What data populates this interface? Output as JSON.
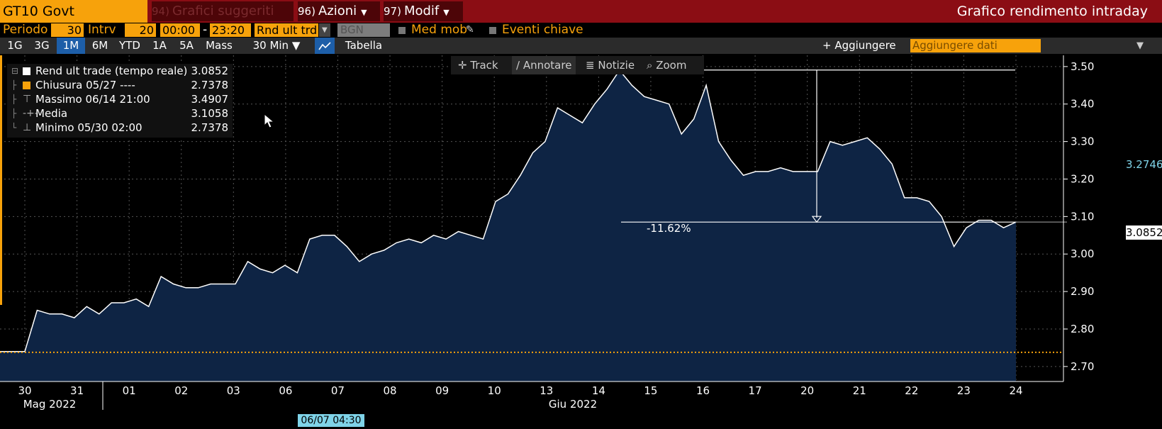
{
  "header": {
    "ticker": "GT10 Govt",
    "menus": [
      {
        "num": "94)",
        "label": "Grafici suggeriti"
      },
      {
        "num": "96)",
        "label": "Azioni"
      },
      {
        "num": "97)",
        "label": "Modif"
      }
    ],
    "title": "Grafico rendimento intraday"
  },
  "settings": {
    "periodo_label": "Periodo",
    "periodo_value": "30",
    "intrv_label": "Intrv",
    "intrv_value": "20",
    "time_start": "00:00",
    "time_sep": "-",
    "time_end": "23:20",
    "field": "Rnd ult trd",
    "source": "BGN",
    "med_mob": "Med mob",
    "eventi": "Eventi chiave"
  },
  "ranges": {
    "buttons": [
      "1G",
      "3G",
      "1M",
      "6M",
      "YTD",
      "1A",
      "5A",
      "Mass"
    ],
    "active": "1M",
    "interval": "30 Min",
    "tabella": "Tabella",
    "add_button": "+ Aggiungere",
    "add_placeholder": "Aggiungere dati"
  },
  "tools": [
    "Track",
    "Annotare",
    "Notizie",
    "Zoom"
  ],
  "legend": [
    {
      "name": "Rend ult trade (tempo reale)",
      "value": "3.0852",
      "color": "#ffffff"
    },
    {
      "name": "Chiusura 05/27 ----",
      "value": "2.7378",
      "color": "#f7a20b"
    },
    {
      "name": "Massimo 06/14 21:00",
      "value": "3.4907",
      "color": ""
    },
    {
      "name": "Media",
      "value": "3.1058",
      "color": ""
    },
    {
      "name": "Minimo 05/30 02:00",
      "value": "2.7378",
      "color": ""
    }
  ],
  "chart_data": {
    "type": "area",
    "title": "Grafico rendimento intraday",
    "ylim": [
      2.66,
      3.53
    ],
    "yticks": [
      "3.50",
      "3.40",
      "3.30",
      "3.20",
      "3.10",
      "3.00",
      "2.90",
      "2.80",
      "2.70"
    ],
    "x_labels": [
      "30",
      "31",
      "01",
      "02",
      "03",
      "06",
      "07",
      "08",
      "09",
      "10",
      "13",
      "14",
      "15",
      "16",
      "17",
      "20",
      "21",
      "22",
      "23",
      "24"
    ],
    "month_labels": [
      "Mag 2022",
      "Giu 2022"
    ],
    "cursor_date": "06/07 04:30",
    "last_value": "3.0852",
    "current_value": "3.2746",
    "previous_close": 2.7378,
    "annotation_pct": "-11.62%",
    "series": [
      {
        "values": [
          2.74,
          2.74,
          2.74,
          2.85,
          2.84,
          2.84,
          2.83,
          2.86,
          2.84,
          2.87,
          2.87,
          2.88,
          2.86,
          2.94,
          2.92,
          2.91,
          2.91,
          2.92,
          2.92,
          2.92,
          2.98,
          2.96,
          2.95,
          2.97,
          2.95,
          3.04,
          3.05,
          3.05,
          3.02,
          2.98,
          3.0,
          3.01,
          3.03,
          3.04,
          3.03,
          3.05,
          3.04,
          3.06,
          3.05,
          3.04,
          3.14,
          3.16,
          3.21,
          3.27,
          3.3,
          3.39,
          3.37,
          3.35,
          3.4,
          3.44,
          3.49,
          3.45,
          3.42,
          3.41,
          3.4,
          3.32,
          3.36,
          3.45,
          3.3,
          3.25,
          3.21,
          3.22,
          3.22,
          3.23,
          3.22,
          3.22,
          3.22,
          3.3,
          3.29,
          3.3,
          3.31,
          3.28,
          3.24,
          3.15,
          3.15,
          3.14,
          3.1,
          3.02,
          3.07,
          3.09,
          3.09,
          3.07,
          3.0852
        ]
      }
    ]
  }
}
